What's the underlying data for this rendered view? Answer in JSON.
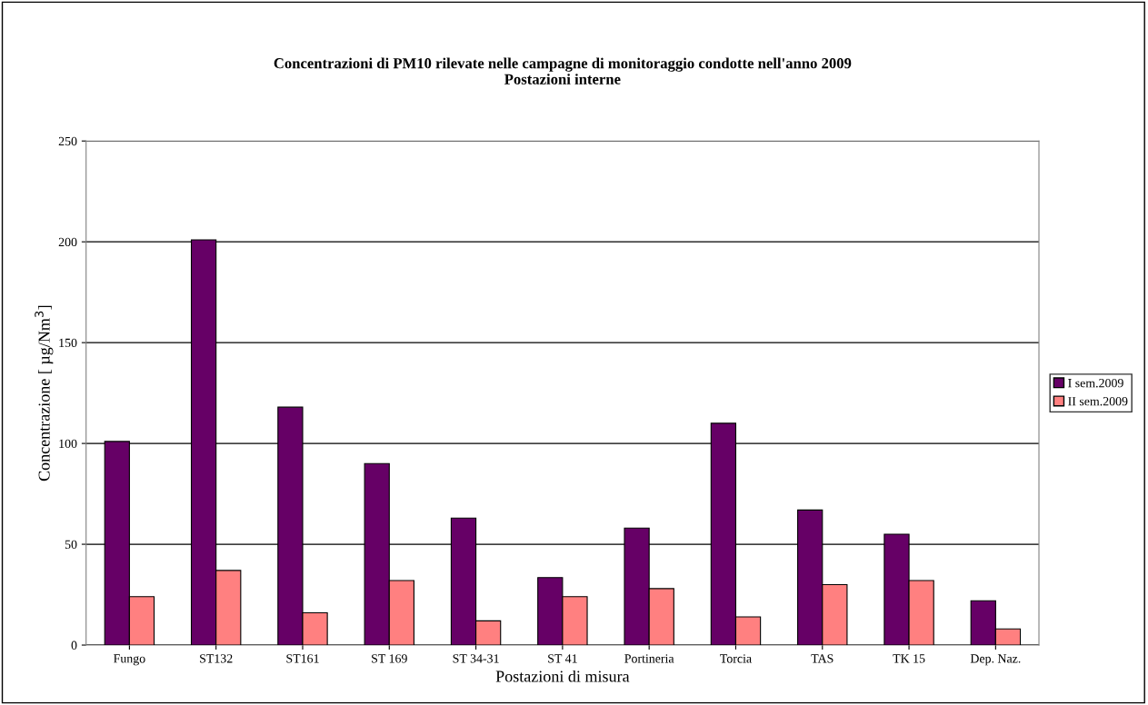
{
  "chart_data": {
    "type": "bar",
    "title": "Concentrazioni di PM10 rilevate nelle campagne di monitoraggio condotte nell'anno 2009\nPostazioni interne",
    "xlabel": "Postazioni di misura",
    "ylabel": "Concentrazione [ µg/Nm$^{3}$]",
    "categories": [
      "Fungo",
      "ST132",
      "ST161",
      "ST 169",
      "ST 34-31",
      "ST 41",
      "Portineria",
      "Torcia",
      "TAS",
      "TK 15",
      "Dep. Naz."
    ],
    "series": [
      {
        "name": "I sem.2009",
        "color": "#660066",
        "values": [
          101,
          201,
          118,
          90,
          63,
          33.5,
          58,
          110,
          67,
          55,
          22
        ]
      },
      {
        "name": "II sem.2009",
        "color": "#ff8080",
        "values": [
          24,
          37,
          16,
          32,
          12,
          24,
          28,
          14,
          30,
          32,
          8
        ]
      }
    ],
    "ylim": [
      0,
      250
    ],
    "yticks": [
      0,
      50,
      100,
      150,
      200,
      250
    ],
    "grid": "y",
    "legend": "right"
  }
}
